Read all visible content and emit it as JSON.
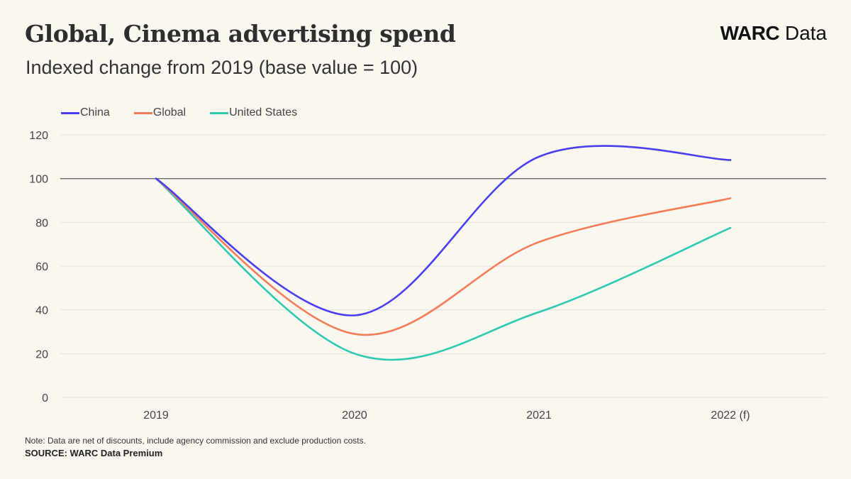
{
  "header": {
    "title": "Global, Cinema advertising spend",
    "subtitle": "Indexed change from 2019 (base value = 100)",
    "brand_strong": "WARC",
    "brand_light": "Data"
  },
  "footer": {
    "note": "Note: Data are net of discounts,  include agency commission  and exclude production  costs.",
    "source": "SOURCE: WARC Data Premium"
  },
  "chart_data": {
    "type": "line",
    "title": "Global, Cinema advertising spend",
    "subtitle": "Indexed change from 2019 (base value = 100)",
    "xlabel": "",
    "ylabel": "",
    "categories": [
      "2019",
      "2020",
      "2021",
      "2022 (f)"
    ],
    "ylim": [
      0,
      120
    ],
    "yticks": [
      0,
      20,
      40,
      60,
      80,
      100,
      120
    ],
    "reference_line": 100,
    "grid": true,
    "legend_position": "top-left",
    "series": [
      {
        "name": "China",
        "color": "#4a3ff0",
        "values": [
          100,
          37.5,
          110,
          108.5
        ]
      },
      {
        "name": "Global",
        "color": "#f47c58",
        "values": [
          100,
          29,
          71,
          91
        ]
      },
      {
        "name": "United States",
        "color": "#2ec9b0",
        "values": [
          100,
          20,
          39,
          77.5
        ]
      }
    ]
  }
}
